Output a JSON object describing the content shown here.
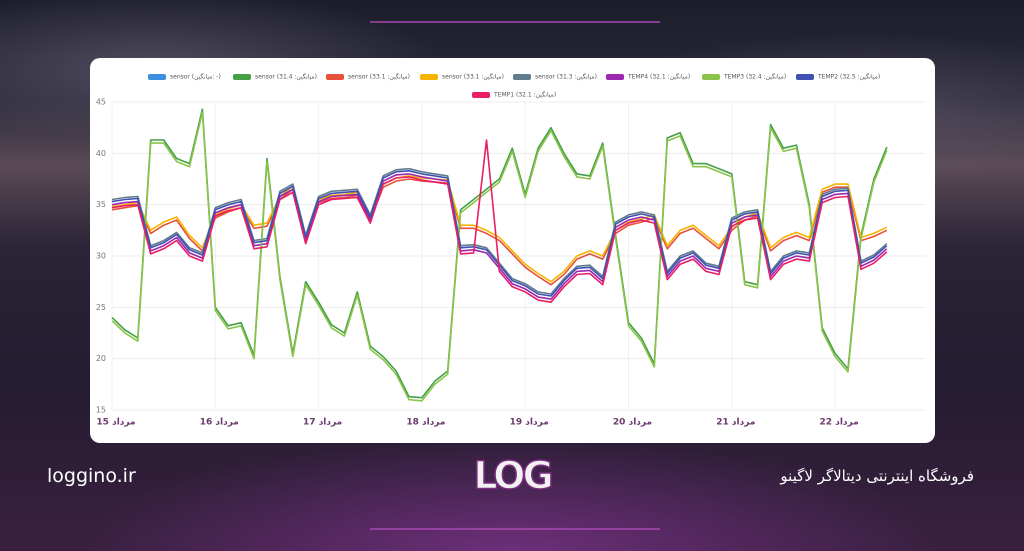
{
  "chart_data": {
    "type": "line",
    "x": [
      15,
      15.125,
      15.25,
      15.375,
      15.5,
      15.625,
      15.75,
      15.875,
      16,
      16.125,
      16.25,
      16.375,
      16.5,
      16.625,
      16.75,
      16.875,
      17,
      17.125,
      17.25,
      17.375,
      17.5,
      17.625,
      17.75,
      17.875,
      18,
      18.125,
      18.25,
      18.375,
      18.5,
      18.625,
      18.75,
      18.875,
      19,
      19.125,
      19.25,
      19.375,
      19.5,
      19.625,
      19.75,
      19.875,
      20,
      20.125,
      20.25,
      20.375,
      20.5,
      20.625,
      20.75,
      20.875,
      21,
      21.125,
      21.25,
      21.375,
      21.5,
      21.625,
      21.75,
      21.875,
      22,
      22.125,
      22.25,
      22.375,
      22.5
    ],
    "xlim": [
      15,
      22.87
    ],
    "xticks": [
      {
        "value": 15,
        "label": "15 مرداد"
      },
      {
        "value": 16,
        "label": "16 مرداد"
      },
      {
        "value": 17,
        "label": "17 مرداد"
      },
      {
        "value": 18,
        "label": "18 مرداد"
      },
      {
        "value": 19,
        "label": "19 مرداد"
      },
      {
        "value": 20,
        "label": "20 مرداد"
      },
      {
        "value": 21,
        "label": "21 مرداد"
      },
      {
        "value": 22,
        "label": "22 مرداد"
      }
    ],
    "ylim": [
      15,
      45
    ],
    "yticks": [
      15,
      20,
      25,
      30,
      35,
      40,
      45
    ],
    "grid": true,
    "legend": "top",
    "series": [
      {
        "name": "sensor (میانگین: -)",
        "color": "#3d8fe0",
        "values": [
          null,
          null,
          null,
          null,
          null,
          null,
          null,
          null,
          null,
          null,
          null,
          null,
          null,
          null,
          null,
          null,
          null,
          null,
          null,
          null,
          null,
          null,
          null,
          null,
          null,
          null,
          null,
          null,
          null,
          null,
          null,
          null,
          null,
          null,
          null,
          null,
          null,
          null,
          null,
          null,
          null,
          null,
          null,
          null,
          null,
          null,
          null,
          null,
          null,
          null,
          null,
          null,
          null,
          null,
          null,
          null,
          null,
          null,
          null,
          null,
          null
        ]
      },
      {
        "name": "sensor (میانگین: 31.4)",
        "color": "#43a047",
        "values": [
          24.0,
          22.8,
          22.0,
          41.3,
          41.3,
          39.5,
          39.0,
          44.3,
          25.0,
          23.2,
          23.5,
          20.3,
          39.5,
          28.0,
          20.5,
          27.5,
          25.5,
          23.3,
          22.5,
          26.5,
          21.2,
          20.2,
          18.8,
          16.3,
          16.2,
          17.8,
          18.8,
          34.5,
          35.5,
          36.5,
          37.5,
          40.5,
          36.0,
          40.5,
          42.5,
          40.0,
          38.0,
          37.8,
          41.0,
          32.0,
          23.5,
          22.0,
          19.5,
          41.5,
          42.0,
          39.0,
          39.0,
          38.5,
          38.0,
          27.5,
          27.2,
          42.8,
          40.5,
          40.8,
          35.0,
          23.0,
          20.5,
          19.0,
          32.0,
          37.5,
          40.6
        ]
      },
      {
        "name": "sensor (میانگین: 33.1)",
        "color": "#e8513a",
        "values": [
          34.5,
          34.7,
          34.9,
          32.2,
          33.0,
          33.5,
          31.7,
          30.5,
          33.7,
          34.3,
          34.7,
          32.7,
          32.9,
          35.5,
          36.5,
          31.5,
          35.2,
          35.6,
          35.7,
          35.9,
          33.5,
          36.7,
          37.3,
          37.5,
          37.3,
          37.2,
          37.1,
          32.7,
          32.7,
          32.2,
          31.5,
          30.2,
          28.9,
          28.0,
          27.2,
          28.2,
          29.7,
          30.2,
          29.7,
          32.2,
          33.0,
          33.3,
          33.7,
          30.7,
          32.2,
          32.7,
          31.7,
          30.7,
          32.5,
          33.5,
          33.9,
          30.5,
          31.5,
          32.0,
          31.5,
          36.2,
          36.7,
          36.7,
          31.5,
          31.9,
          32.5
        ]
      },
      {
        "name": "sensor (میانگین: 33.1)",
        "color": "#f5b400",
        "values": [
          34.8,
          35.0,
          35.2,
          32.5,
          33.3,
          33.8,
          32.0,
          30.8,
          34.0,
          34.6,
          35.0,
          33.0,
          33.2,
          35.8,
          36.8,
          31.8,
          35.5,
          35.9,
          36.0,
          36.2,
          33.8,
          37.0,
          37.6,
          37.8,
          37.6,
          37.5,
          37.4,
          33.0,
          33.0,
          32.5,
          31.8,
          30.5,
          29.2,
          28.3,
          27.5,
          28.5,
          30.0,
          30.5,
          30.0,
          32.5,
          33.3,
          33.6,
          34.0,
          31.0,
          32.5,
          33.0,
          32.0,
          31.0,
          32.8,
          33.8,
          34.2,
          30.8,
          31.8,
          32.3,
          31.8,
          36.5,
          37.0,
          37.0,
          31.8,
          32.2,
          32.8
        ]
      },
      {
        "name": "sensor (میانگین: 31.3)",
        "color": "#5f7d8c",
        "values": [
          35.5,
          35.7,
          35.8,
          31.0,
          31.5,
          32.3,
          30.8,
          30.3,
          34.7,
          35.2,
          35.5,
          31.5,
          31.7,
          36.3,
          37.0,
          32.0,
          35.8,
          36.3,
          36.4,
          36.5,
          34.0,
          37.8,
          38.4,
          38.5,
          38.2,
          38.0,
          37.8,
          31.0,
          31.1,
          30.8,
          29.3,
          27.8,
          27.3,
          26.5,
          26.3,
          27.8,
          29.0,
          29.1,
          28.0,
          33.3,
          34.0,
          34.3,
          34.0,
          28.5,
          30.0,
          30.5,
          29.3,
          29.0,
          33.7,
          34.3,
          34.5,
          28.5,
          30.0,
          30.5,
          30.3,
          36.0,
          36.5,
          36.6,
          29.5,
          30.1,
          31.2
        ]
      },
      {
        "name": "TEMP4 (میانگین: 32.1)",
        "color": "#9c27b0",
        "values": [
          35.0,
          35.2,
          35.3,
          30.5,
          31.0,
          31.8,
          30.3,
          29.8,
          34.2,
          34.7,
          35.0,
          31.0,
          31.2,
          35.8,
          36.5,
          31.5,
          35.3,
          35.8,
          35.9,
          36.0,
          33.5,
          37.3,
          37.9,
          38.0,
          37.7,
          37.5,
          37.3,
          30.5,
          30.6,
          30.3,
          28.8,
          27.3,
          26.8,
          26.0,
          25.8,
          27.3,
          28.5,
          28.6,
          27.5,
          32.8,
          33.5,
          33.8,
          33.5,
          28.0,
          29.5,
          30.0,
          28.8,
          28.5,
          33.2,
          33.8,
          34.0,
          28.0,
          29.5,
          30.0,
          29.8,
          35.5,
          36.0,
          36.1,
          29.0,
          29.6,
          30.7
        ]
      },
      {
        "name": "TEMP3 (میانگین: 32.4)",
        "color": "#8bc34a",
        "values": [
          23.7,
          22.5,
          21.7,
          41.0,
          41.0,
          39.2,
          38.7,
          44.0,
          24.7,
          22.9,
          23.2,
          20.0,
          39.2,
          27.7,
          20.2,
          27.2,
          25.2,
          23.0,
          22.2,
          26.2,
          20.9,
          19.9,
          18.5,
          16.0,
          15.9,
          17.5,
          18.5,
          34.2,
          35.2,
          36.2,
          37.2,
          40.2,
          35.7,
          40.2,
          42.2,
          39.7,
          37.7,
          37.5,
          40.7,
          31.7,
          23.2,
          21.7,
          19.2,
          41.2,
          41.7,
          38.7,
          38.7,
          38.2,
          37.7,
          27.2,
          26.9,
          42.5,
          40.2,
          40.5,
          34.7,
          22.7,
          20.2,
          18.7,
          31.7,
          37.2,
          40.3
        ]
      },
      {
        "name": "TEMP2 (میانگین: 32.5)",
        "color": "#3f51b5",
        "values": [
          35.3,
          35.5,
          35.6,
          30.8,
          31.3,
          32.1,
          30.6,
          30.1,
          34.5,
          35.0,
          35.3,
          31.3,
          31.5,
          36.1,
          36.8,
          31.8,
          35.6,
          36.1,
          36.2,
          36.3,
          33.8,
          37.6,
          38.2,
          38.3,
          38.0,
          37.8,
          37.6,
          30.8,
          30.9,
          30.6,
          29.1,
          27.6,
          27.1,
          26.3,
          26.1,
          27.6,
          28.8,
          28.9,
          27.8,
          33.1,
          33.8,
          34.1,
          33.8,
          28.3,
          29.8,
          30.3,
          29.1,
          28.8,
          33.5,
          34.1,
          34.3,
          28.3,
          29.8,
          30.3,
          30.1,
          35.8,
          36.3,
          36.4,
          29.3,
          29.9,
          31.0
        ]
      },
      {
        "name": "TEMP1 (میانگین: 32.1)",
        "color": "#e91e63",
        "values": [
          34.7,
          34.9,
          35.0,
          30.2,
          30.7,
          31.5,
          30.0,
          29.5,
          33.9,
          34.4,
          34.7,
          30.7,
          30.9,
          35.5,
          36.2,
          31.2,
          35.0,
          35.5,
          35.6,
          35.7,
          33.2,
          37.0,
          37.6,
          37.7,
          37.4,
          37.2,
          37.0,
          30.2,
          30.3,
          41.3,
          28.5,
          27.0,
          26.5,
          25.7,
          25.5,
          27.0,
          28.2,
          28.3,
          27.2,
          32.5,
          33.2,
          33.5,
          33.2,
          27.7,
          29.2,
          29.7,
          28.5,
          28.2,
          32.9,
          33.5,
          33.7,
          27.7,
          29.2,
          29.7,
          29.5,
          35.2,
          35.7,
          35.8,
          28.7,
          29.3,
          30.4
        ]
      }
    ]
  },
  "footer": {
    "site": "loggino.ir",
    "logo": "LOG",
    "slogan": "فروشگاه اینترنتی دیتالاگر لاگینو"
  }
}
